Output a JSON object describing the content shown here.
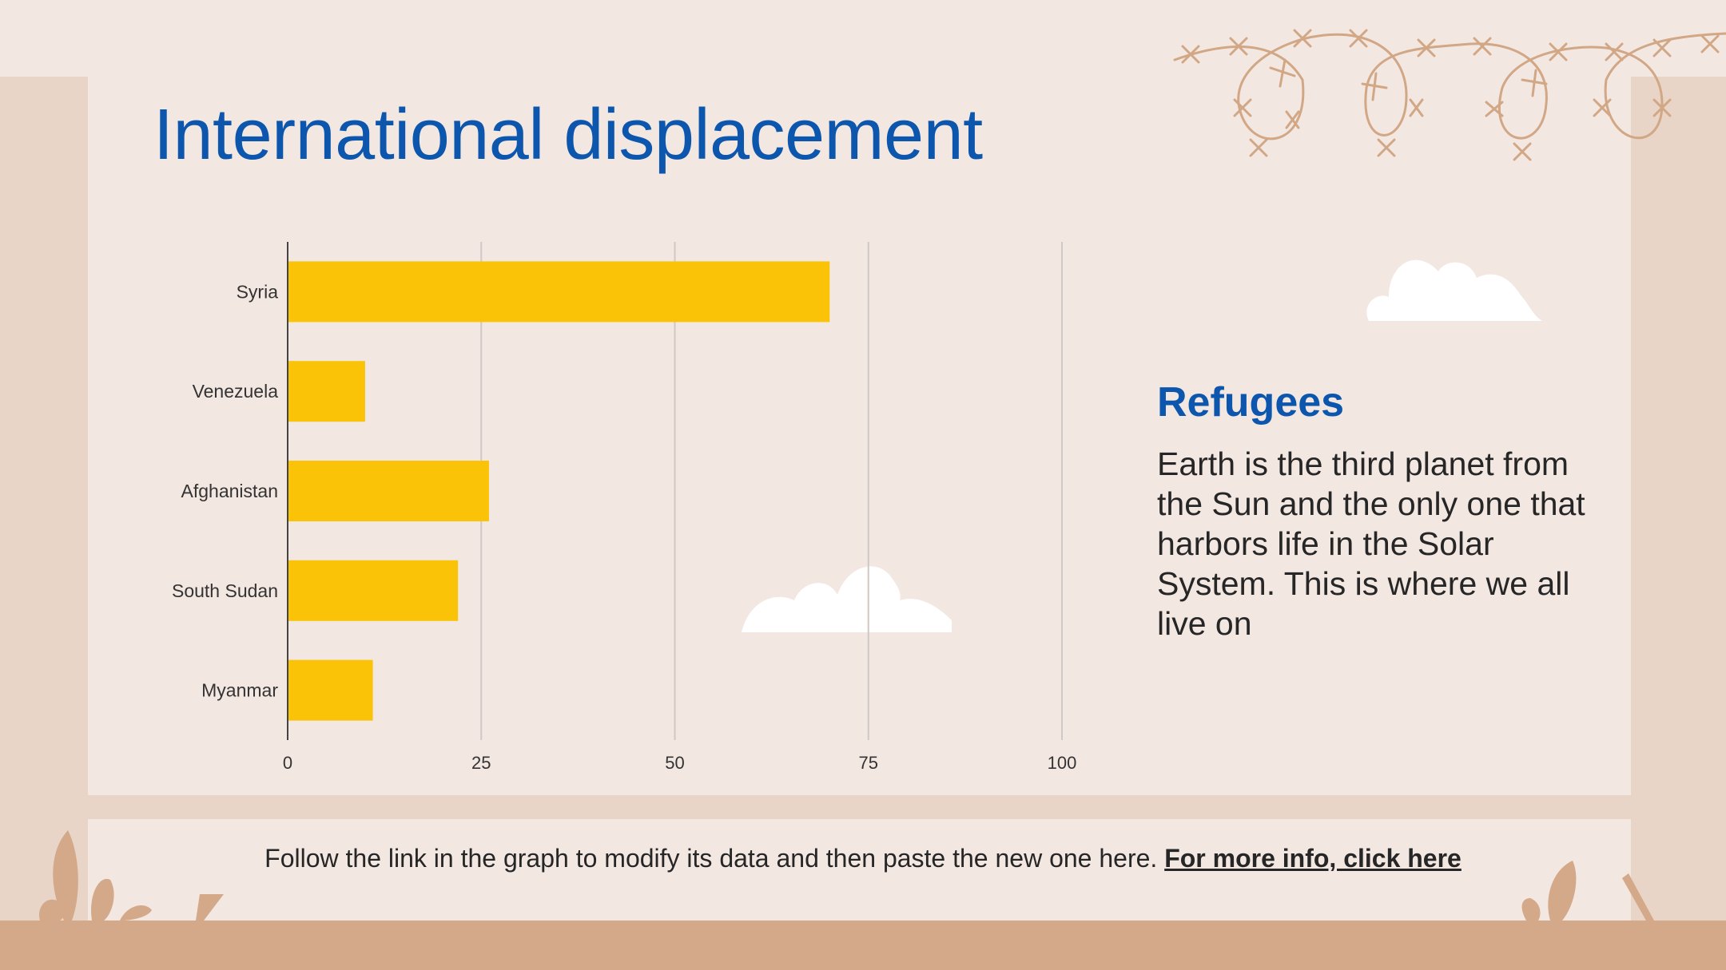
{
  "title": "International displacement",
  "refugees": {
    "heading": "Refugees",
    "body": "Earth is the third planet from the Sun and the only one that harbors life in the Solar System. This is where we all live on"
  },
  "footer": {
    "text": "Follow the link in the graph to modify its data and then paste the new one here.",
    "link": "For more info, click here"
  },
  "colors": {
    "bar": "#fac307",
    "title": "#0c57ad",
    "background": "#f3e7e2",
    "frame": "#e8d5c7",
    "ground": "#d3a98a",
    "wire": "#d1a785"
  },
  "chart_data": {
    "type": "bar",
    "orientation": "horizontal",
    "categories": [
      "Syria",
      "Venezuela",
      "Afghanistan",
      "South Sudan",
      "Myanmar"
    ],
    "values": [
      70,
      10,
      26,
      22,
      11
    ],
    "xlim": [
      0,
      100
    ],
    "xticks": [
      0,
      25,
      50,
      75,
      100
    ],
    "grid": "vertical",
    "title": "",
    "xlabel": "",
    "ylabel": ""
  }
}
